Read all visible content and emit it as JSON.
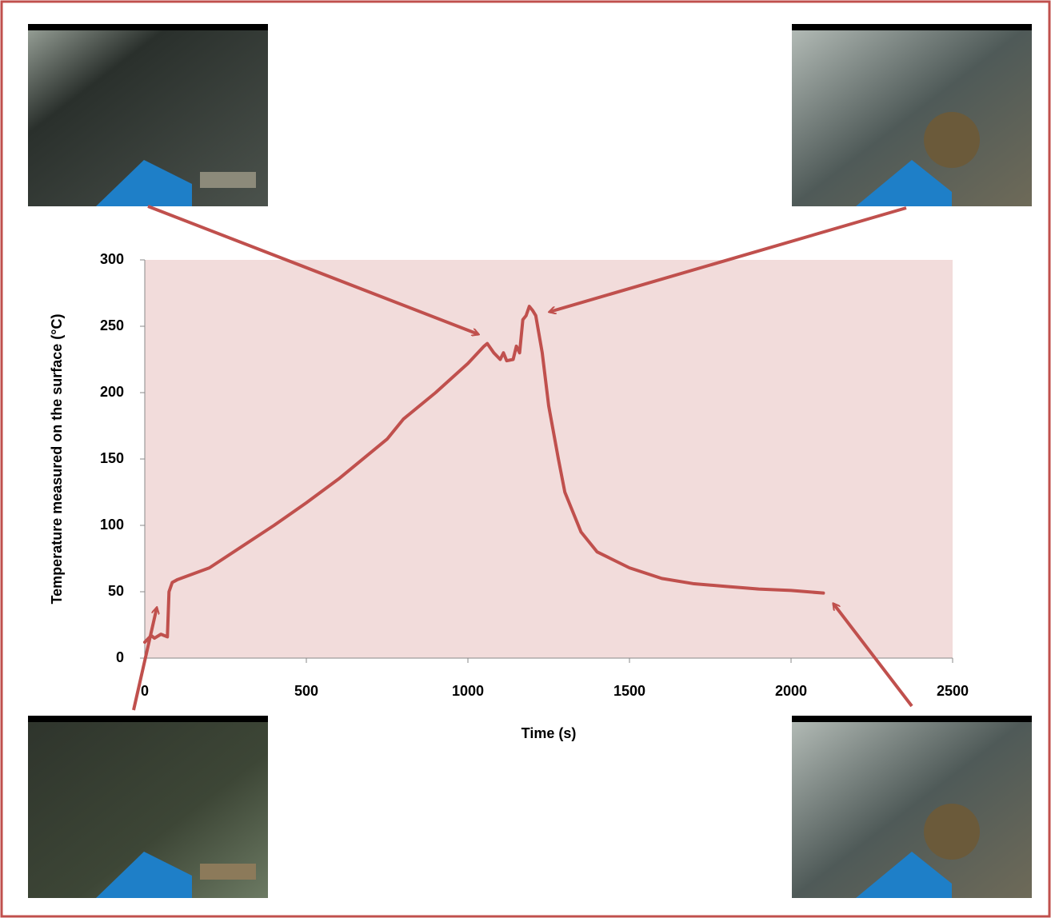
{
  "chart_data": {
    "type": "line",
    "x_label": "Time (s)",
    "y_label": "Temperature measured on the surface (°C)",
    "x": [
      0,
      20,
      30,
      50,
      60,
      70,
      75,
      85,
      100,
      200,
      300,
      400,
      500,
      600,
      700,
      750,
      800,
      900,
      1000,
      1050,
      1060,
      1080,
      1100,
      1110,
      1120,
      1140,
      1150,
      1160,
      1170,
      1180,
      1190,
      1200,
      1210,
      1230,
      1250,
      1280,
      1300,
      1350,
      1400,
      1500,
      1600,
      1700,
      1800,
      1900,
      2000,
      2100
    ],
    "values": [
      12,
      17,
      15,
      18,
      17,
      16,
      50,
      57,
      59,
      68,
      84,
      100,
      117,
      135,
      155,
      165,
      180,
      200,
      222,
      235,
      237,
      230,
      225,
      230,
      224,
      225,
      235,
      230,
      255,
      258,
      265,
      262,
      258,
      230,
      190,
      150,
      125,
      95,
      80,
      68,
      60,
      56,
      54,
      52,
      51,
      49
    ],
    "color": "#c0504d",
    "xlim": [
      0,
      2500
    ],
    "xticks": [
      0,
      500,
      1000,
      1500,
      2000,
      2500
    ],
    "ylim": [
      0,
      300
    ],
    "yticks": [
      0,
      50,
      100,
      150,
      200,
      250,
      300
    ],
    "grid": false
  }
}
